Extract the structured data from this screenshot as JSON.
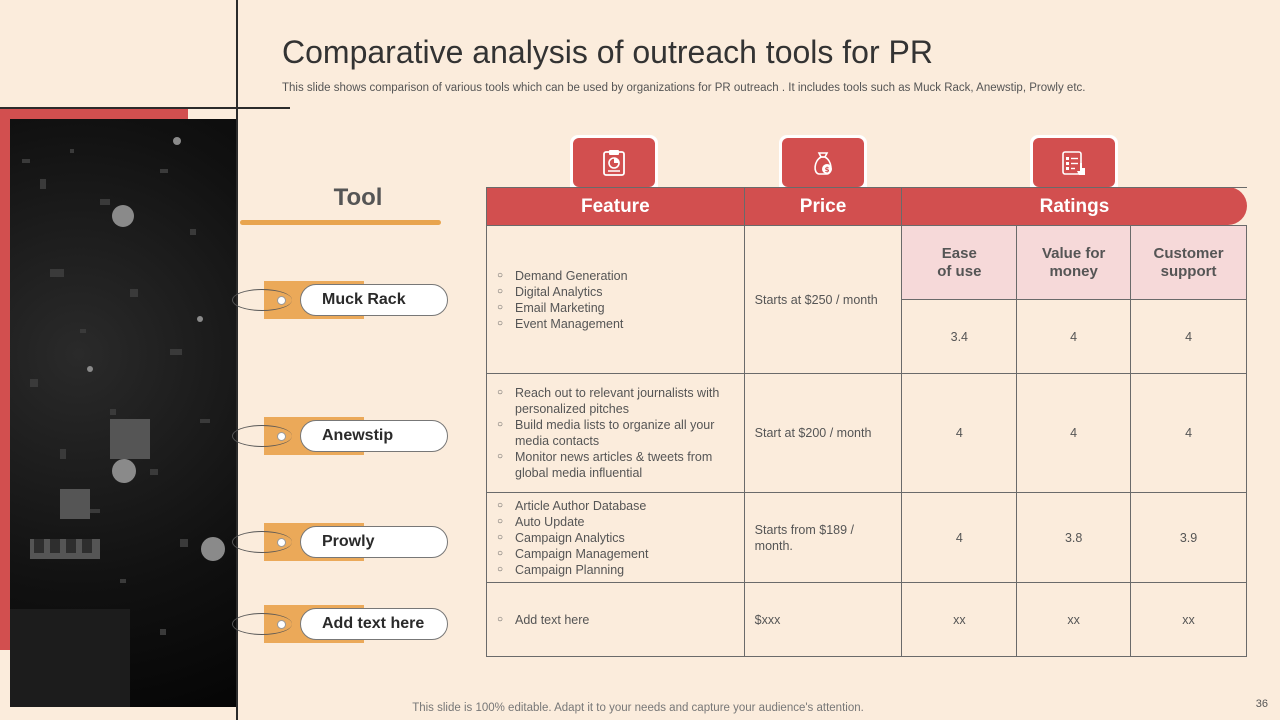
{
  "title": "Comparative analysis of outreach tools for PR",
  "subtitle": "This slide shows comparison of various tools which can be used by organizations for PR outreach . It includes tools such as Muck Rack, Anewstip, Prowly etc.",
  "tool_heading": "Tool",
  "tools": [
    "Muck Rack",
    "Anewstip",
    "Prowly",
    "Add text here"
  ],
  "table": {
    "headers": {
      "feature": "Feature",
      "price": "Price",
      "ratings": "Ratings"
    },
    "rating_headers": [
      [
        "Ease",
        "of use"
      ],
      [
        "Value for",
        "money"
      ],
      [
        "Customer",
        "support"
      ]
    ],
    "rows": [
      {
        "features": [
          "Demand Generation",
          "Digital Analytics",
          "Email Marketing",
          "Event Management"
        ],
        "price": "Starts at $250  / month",
        "ratings": [
          "3.4",
          "4",
          "4"
        ]
      },
      {
        "features": [
          "Reach  out to relevant  journalists with personalized pitches",
          "Build media lists to organize  all your media contacts",
          "Monitor news articles & tweets from global media influential"
        ],
        "price": "Start at $200  / month",
        "ratings": [
          "4",
          "4",
          "4"
        ]
      },
      {
        "features": [
          "Article Author Database",
          "Auto Update",
          "Campaign  Analytics",
          "Campaign  Management",
          "Campaign  Planning"
        ],
        "price": "Starts from  $189  / month.",
        "ratings": [
          "4",
          "3.8",
          "3.9"
        ]
      },
      {
        "features": [
          "Add text here"
        ],
        "price": "$xxx",
        "ratings": [
          "xx",
          "xx",
          "xx"
        ]
      }
    ]
  },
  "icons": [
    "clipboard-chart-icon",
    "money-bag-icon",
    "checklist-icon"
  ],
  "footer": "This slide is 100% editable. Adapt it to your needs and capture your audience's attention.",
  "page_number": "36",
  "colors": {
    "accent_red": "#d24f4f",
    "accent_orange": "#eba959",
    "background": "#fbecdc"
  }
}
